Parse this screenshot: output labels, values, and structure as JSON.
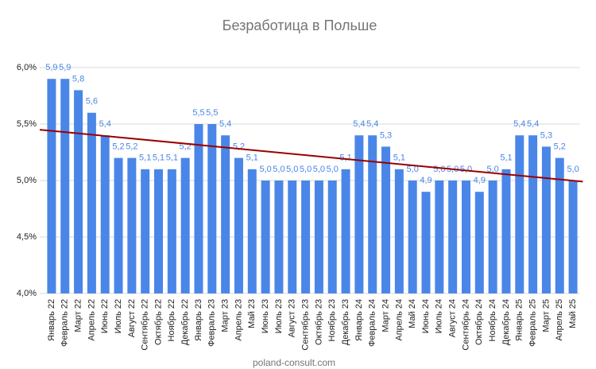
{
  "chart_data": {
    "type": "bar",
    "title": "Безработица в Польше",
    "source": "poland-consult.com",
    "categories": [
      "Январь 22",
      "Февраль 22",
      "Март 22",
      "Апрель 22",
      "Июнь 22",
      "Июль 22",
      "Август 22",
      "Сентябрь 22",
      "Октябрь 22",
      "Ноябрь 22",
      "Декабрь 22",
      "Январь 23",
      "Февраль 23",
      "Март 23",
      "Апрель 23",
      "Май 23",
      "Июнь 23",
      "Июль 23",
      "Август 23",
      "Сентябрь 23",
      "Октябрь 23",
      "Ноябрь 23",
      "Декабрь 23",
      "Январь 24",
      "Февраль 24",
      "Март 24",
      "Апрель 24",
      "Май 24",
      "Июнь 24",
      "Июль 24",
      "Август 24",
      "Сентябрь 24",
      "Октябрь 24",
      "Ноябрь 24",
      "Декабрь 24",
      "Январь 25",
      "Февраль 25",
      "Март 25",
      "Апрель 25",
      "Май 25"
    ],
    "values": [
      5.9,
      5.9,
      5.8,
      5.6,
      5.4,
      5.2,
      5.2,
      5.1,
      5.1,
      5.1,
      5.2,
      5.5,
      5.5,
      5.4,
      5.2,
      5.1,
      5.0,
      5.0,
      5.0,
      5.0,
      5.0,
      5.0,
      5.1,
      5.4,
      5.4,
      5.3,
      5.1,
      5.0,
      4.9,
      5.0,
      5.0,
      5.0,
      4.9,
      5.0,
      5.1,
      5.4,
      5.4,
      5.3,
      5.2,
      5.0
    ],
    "value_labels": [
      "5,9",
      "5,9",
      "5,8",
      "5,6",
      "5,4",
      "5,2",
      "5,2",
      "5,1",
      "5,1",
      "5,1",
      "5,2",
      "5,5",
      "5,5",
      "5,4",
      "5,2",
      "5,1",
      "5,0",
      "5,0",
      "5,0",
      "5,0",
      "5,0",
      "5,0",
      "5,1",
      "5,4",
      "5,4",
      "5,3",
      "5,1",
      "5,0",
      "4,9",
      "5,0",
      "5,0",
      "5,0",
      "4,9",
      "5,0",
      "5,1",
      "5,4",
      "5,4",
      "5,3",
      "5,2",
      "5,0"
    ],
    "color": "#4a86e8",
    "trend": {
      "color": "#990000",
      "values": [
        5.45,
        4.99
      ]
    },
    "ylim": [
      4.0,
      6.0
    ],
    "yticks": [
      {
        "value": 4.0,
        "label": "4,0%"
      },
      {
        "value": 4.5,
        "label": "4,5%"
      },
      {
        "value": 5.0,
        "label": "5,0%"
      },
      {
        "value": 5.5,
        "label": "5,5%"
      },
      {
        "value": 6.0,
        "label": "6,0%"
      }
    ],
    "grid": true
  }
}
